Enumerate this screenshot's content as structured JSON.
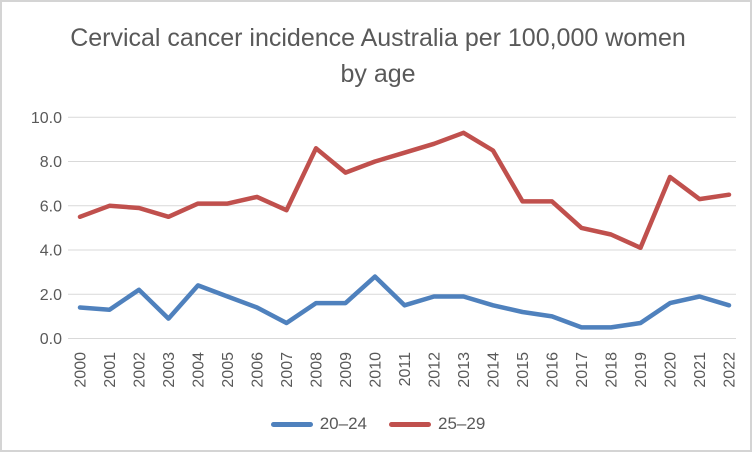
{
  "window": {
    "background": "#ffffff",
    "border_color": "#d4d4d4"
  },
  "colors": {
    "title_text": "#595959",
    "axis_text": "#595959",
    "gridline": "#d9d9d9",
    "series_20_24": "#4F81BD",
    "series_25_29": "#C0504D"
  },
  "chart_data": {
    "type": "line",
    "title": "Cervical cancer incidence Australia per 100,000 women by age",
    "categories": [
      "2000",
      "2001",
      "2002",
      "2003",
      "2004",
      "2005",
      "2006",
      "2007",
      "2008",
      "2009",
      "2010",
      "2011",
      "2012",
      "2013",
      "2014",
      "2015",
      "2016",
      "2017",
      "2018",
      "2019",
      "2020",
      "2021",
      "2022"
    ],
    "series": [
      {
        "name": "20–24",
        "color": "#4F81BD",
        "values": [
          1.4,
          1.3,
          2.2,
          0.9,
          2.4,
          1.9,
          1.4,
          0.7,
          1.6,
          1.6,
          2.8,
          1.5,
          1.9,
          1.9,
          1.5,
          1.2,
          1.0,
          0.5,
          0.5,
          0.7,
          1.6,
          1.9,
          1.5
        ]
      },
      {
        "name": "25–29",
        "color": "#C0504D",
        "values": [
          5.5,
          6.0,
          5.9,
          5.5,
          6.1,
          6.1,
          6.4,
          5.8,
          8.6,
          7.5,
          8.0,
          8.4,
          8.8,
          9.3,
          8.5,
          6.2,
          6.2,
          5.0,
          4.7,
          4.1,
          7.3,
          6.3,
          6.5
        ]
      }
    ],
    "xlabel": "",
    "ylabel": "",
    "ylim": [
      0,
      10
    ],
    "yticks": [
      0,
      2,
      4,
      6,
      8,
      10
    ],
    "ytick_labels": [
      "0.0",
      "2.0",
      "4.0",
      "6.0",
      "8.0",
      "10.0"
    ],
    "grid": "horizontal",
    "legend_position": "bottom"
  }
}
